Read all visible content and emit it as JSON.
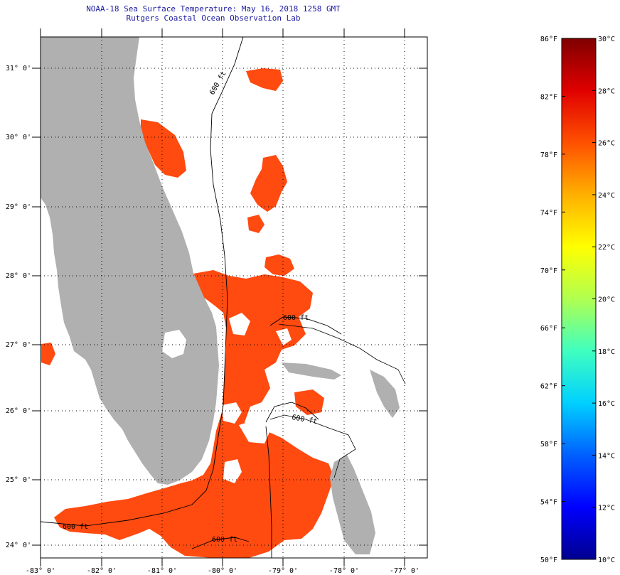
{
  "header": {
    "title": "NOAA-18 Sea Surface Temperature:  May 16, 2018 1258 GMT",
    "subtitle": "Rutgers Coastal Ocean Observation Lab"
  },
  "map": {
    "lat_labels": [
      "31° 0'",
      "30° 0'",
      "29° 0'",
      "28° 0'",
      "27° 0'",
      "26° 0'",
      "25° 0'",
      "24° 0'"
    ],
    "lon_labels": [
      "-83° 0'",
      "-82° 0'",
      "-81° 0'",
      "-80° 0'",
      "-79° 0'",
      "-78° 0'",
      "-77° 0'"
    ],
    "isobath_labels": [
      "600 ft",
      "600 ft",
      "600 ft",
      "600 ft",
      "600 ft"
    ],
    "land_color": "#b0b0b0",
    "sst_color": "#ff4a10"
  },
  "colorbar": {
    "fahrenheit": [
      "86°F",
      "82°F",
      "78°F",
      "74°F",
      "70°F",
      "66°F",
      "62°F",
      "58°F",
      "54°F",
      "50°F"
    ],
    "celsius": [
      "30°C",
      "28°C",
      "26°C",
      "24°C",
      "22°C",
      "20°C",
      "18°C",
      "16°C",
      "14°C",
      "12°C",
      "10°C"
    ],
    "stops": [
      "#00008f",
      "#0000ff",
      "#0060ff",
      "#00d0ff",
      "#40ffc0",
      "#b0ff50",
      "#ffff00",
      "#ffb000",
      "#ff5000",
      "#e00000",
      "#800000"
    ]
  }
}
